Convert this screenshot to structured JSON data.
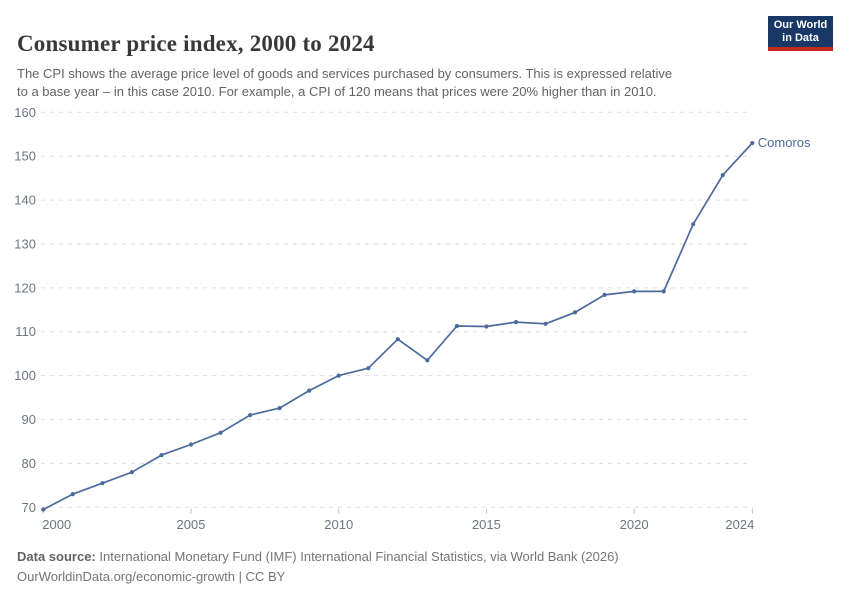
{
  "header": {
    "title": "Consumer price index, 2000 to 2024",
    "subtitle_line1": "The CPI shows the average price level of goods and services purchased by consumers. This is expressed relative",
    "subtitle_line2": "to a base year – in this case 2010. For example, a CPI of 120 means that prices were 20% higher than in 2010.",
    "logo_line1": "Our World",
    "logo_line2": "in Data"
  },
  "chart_data": {
    "type": "line",
    "title": "Consumer price index, 2000 to 2024",
    "xlabel": "",
    "ylabel": "",
    "x": [
      2000,
      2001,
      2002,
      2003,
      2004,
      2005,
      2006,
      2007,
      2008,
      2009,
      2010,
      2011,
      2012,
      2013,
      2014,
      2015,
      2016,
      2017,
      2018,
      2019,
      2020,
      2021,
      2022,
      2023,
      2024
    ],
    "series": [
      {
        "name": "Comoros",
        "color": "#4c6a9c",
        "values": [
          69.5,
          73.0,
          75.5,
          78.0,
          81.9,
          84.3,
          87.0,
          91.0,
          92.6,
          96.6,
          100.0,
          101.7,
          108.3,
          103.5,
          111.3,
          111.2,
          112.2,
          111.8,
          114.4,
          118.4,
          119.2,
          119.2,
          134.5,
          145.7,
          153.0
        ]
      }
    ],
    "ylim": [
      70,
      160
    ],
    "yticks": [
      70,
      80,
      90,
      100,
      110,
      120,
      130,
      140,
      150,
      160
    ],
    "xticks": [
      2000,
      2005,
      2010,
      2015,
      2020,
      2024
    ],
    "grid": "horizontal-dashed",
    "legend": "line-end-label"
  },
  "footer": {
    "source_label": "Data source:",
    "source_text": " International Monetary Fund (IMF) International Financial Statistics, via World Bank (2026)",
    "license_line": "OurWorldinData.org/economic-growth | CC BY"
  },
  "colors": {
    "line": "#4c6a9c",
    "gridline": "#dcdee1",
    "tick_label": "#6e7581",
    "title": "#383838",
    "subtitle": "#636363",
    "logo_bg": "#1a3866",
    "logo_stripe": "#c3281f"
  }
}
